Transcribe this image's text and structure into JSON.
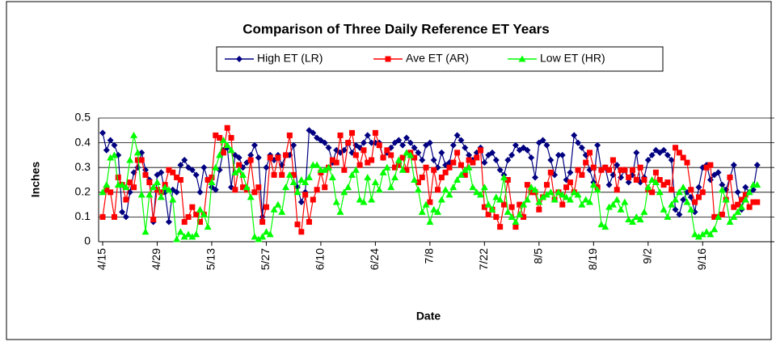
{
  "chart_data": {
    "type": "line",
    "title": "Comparison of Three  Daily Reference ET Years",
    "x_label": "Date",
    "y_label": "Inches",
    "legend": "top",
    "grid": true,
    "ylim": [
      0,
      0.5
    ],
    "yticks": [
      0,
      0.1,
      0.2,
      0.3,
      0.4,
      0.5
    ],
    "categories": [
      "4/15",
      null,
      null,
      null,
      null,
      null,
      null,
      null,
      null,
      null,
      null,
      null,
      null,
      null,
      "4/29",
      null,
      null,
      null,
      null,
      null,
      null,
      null,
      null,
      null,
      null,
      null,
      null,
      null,
      "5/13",
      null,
      null,
      null,
      null,
      null,
      null,
      null,
      null,
      null,
      null,
      null,
      null,
      null,
      "5/27",
      null,
      null,
      null,
      null,
      null,
      null,
      null,
      null,
      null,
      null,
      null,
      null,
      null,
      "6/10",
      null,
      null,
      null,
      null,
      null,
      null,
      null,
      null,
      null,
      null,
      null,
      null,
      null,
      "6/24",
      null,
      null,
      null,
      null,
      null,
      null,
      null,
      null,
      null,
      null,
      null,
      null,
      null,
      "7/8",
      null,
      null,
      null,
      null,
      null,
      null,
      null,
      null,
      null,
      null,
      null,
      null,
      null,
      "7/22",
      null,
      null,
      null,
      null,
      null,
      null,
      null,
      null,
      null,
      null,
      null,
      null,
      null,
      "8/5",
      null,
      null,
      null,
      null,
      null,
      null,
      null,
      null,
      null,
      null,
      null,
      null,
      null,
      "8/19",
      null,
      null,
      null,
      null,
      null,
      null,
      null,
      null,
      null,
      null,
      null,
      null,
      null,
      "9/2",
      null,
      null,
      null,
      null,
      null,
      null,
      null,
      null,
      null,
      null,
      null,
      null,
      null,
      "9/16",
      null,
      null,
      null,
      null,
      null,
      null,
      null,
      null,
      null,
      null,
      null,
      null,
      null,
      null
    ],
    "series": [
      {
        "name": "High ET (LR)",
        "color": "#000080",
        "marker": "diamond",
        "values": [
          0.44,
          0.37,
          0.41,
          0.39,
          0.35,
          0.12,
          0.1,
          0.2,
          0.28,
          0.3,
          0.36,
          0.29,
          0.25,
          0.08,
          0.27,
          0.28,
          0.2,
          0.08,
          0.21,
          0.2,
          0.31,
          0.33,
          0.3,
          0.29,
          0.27,
          0.2,
          0.3,
          0.25,
          0.22,
          0.21,
          0.29,
          0.37,
          0.38,
          0.22,
          0.35,
          0.34,
          0.3,
          0.32,
          0.35,
          0.39,
          0.34,
          0.1,
          0.3,
          0.35,
          0.33,
          0.35,
          0.31,
          0.35,
          0.35,
          0.39,
          0.22,
          0.16,
          0.2,
          0.45,
          0.44,
          0.42,
          0.41,
          0.4,
          0.38,
          0.32,
          0.37,
          0.36,
          0.37,
          0.4,
          0.36,
          0.39,
          0.38,
          0.4,
          0.43,
          0.4,
          0.4,
          0.4,
          0.34,
          0.36,
          0.38,
          0.4,
          0.41,
          0.39,
          0.42,
          0.4,
          0.38,
          0.36,
          0.33,
          0.39,
          0.4,
          0.33,
          0.3,
          0.36,
          0.31,
          0.32,
          0.39,
          0.43,
          0.41,
          0.38,
          0.35,
          0.33,
          0.36,
          0.38,
          0.32,
          0.35,
          0.36,
          0.33,
          0.29,
          0.27,
          0.33,
          0.35,
          0.39,
          0.37,
          0.38,
          0.37,
          0.34,
          0.26,
          0.4,
          0.41,
          0.39,
          0.33,
          0.27,
          0.35,
          0.35,
          0.25,
          0.28,
          0.43,
          0.4,
          0.38,
          0.35,
          0.29,
          0.24,
          0.39,
          0.29,
          0.3,
          0.23,
          0.27,
          0.31,
          0.26,
          0.29,
          0.24,
          0.27,
          0.36,
          0.24,
          0.26,
          0.33,
          0.35,
          0.37,
          0.36,
          0.37,
          0.35,
          0.33,
          0.13,
          0.11,
          0.17,
          0.2,
          0.18,
          0.12,
          0.22,
          0.3,
          0.31,
          0.25,
          0.27,
          0.28,
          0.23,
          0.21,
          0.26,
          0.31,
          0.2,
          0.13,
          0.22,
          0.2,
          0.21,
          0.31
        ]
      },
      {
        "name": "Ave ET (AR)",
        "color": "#ff0000",
        "marker": "square",
        "values": [
          0.1,
          0.21,
          0.2,
          0.1,
          0.26,
          0.23,
          0.17,
          0.24,
          0.22,
          0.33,
          0.33,
          0.27,
          0.24,
          0.09,
          0.21,
          0.2,
          0.23,
          0.29,
          0.28,
          0.26,
          0.25,
          0.08,
          0.1,
          0.14,
          0.11,
          0.08,
          0.11,
          0.25,
          0.26,
          0.43,
          0.42,
          0.36,
          0.46,
          0.42,
          0.21,
          0.31,
          0.22,
          0.21,
          0.33,
          0.2,
          0.22,
          0.08,
          0.14,
          0.34,
          0.27,
          0.34,
          0.27,
          0.35,
          0.43,
          0.27,
          0.07,
          0.04,
          0.19,
          0.08,
          0.17,
          0.21,
          0.28,
          0.22,
          0.3,
          0.33,
          0.32,
          0.43,
          0.29,
          0.4,
          0.44,
          0.35,
          0.31,
          0.37,
          0.32,
          0.33,
          0.44,
          0.39,
          0.34,
          0.37,
          0.35,
          0.3,
          0.31,
          0.34,
          0.29,
          0.36,
          0.34,
          0.24,
          0.26,
          0.3,
          0.16,
          0.29,
          0.21,
          0.26,
          0.28,
          0.3,
          0.32,
          0.36,
          0.31,
          0.27,
          0.33,
          0.32,
          0.34,
          0.37,
          0.14,
          0.11,
          0.13,
          0.1,
          0.06,
          0.15,
          0.25,
          0.14,
          0.06,
          0.15,
          0.1,
          0.23,
          0.2,
          0.2,
          0.13,
          0.18,
          0.23,
          0.28,
          0.17,
          0.2,
          0.15,
          0.22,
          0.24,
          0.2,
          0.29,
          0.27,
          0.32,
          0.36,
          0.3,
          0.22,
          0.29,
          0.3,
          0.29,
          0.33,
          0.21,
          0.29,
          0.29,
          0.26,
          0.29,
          0.25,
          0.3,
          0.25,
          0.21,
          0.2,
          0.28,
          0.25,
          0.23,
          0.24,
          0.21,
          0.38,
          0.36,
          0.34,
          0.32,
          0.21,
          0.16,
          0.18,
          0.2,
          0.3,
          0.31,
          0.1,
          0.1,
          0.11,
          0.17,
          0.26,
          0.14,
          0.15,
          0.17,
          0.19,
          0.14,
          0.16,
          0.16
        ]
      },
      {
        "name": "Low ET (HR)",
        "color": "#00ff00",
        "marker": "triangle",
        "values": [
          0.2,
          0.23,
          0.34,
          0.35,
          0.23,
          0.23,
          0.22,
          0.33,
          0.43,
          0.36,
          0.19,
          0.04,
          0.19,
          0.22,
          0.24,
          0.18,
          0.22,
          0.21,
          0.17,
          0.01,
          0.04,
          0.02,
          0.03,
          0.02,
          0.03,
          0.13,
          0.11,
          0.06,
          0.24,
          0.3,
          0.35,
          0.41,
          0.39,
          0.37,
          0.28,
          0.29,
          0.27,
          0.22,
          0.18,
          0.02,
          0.01,
          0.02,
          0.04,
          0.03,
          0.13,
          0.15,
          0.12,
          0.22,
          0.27,
          0.24,
          0.2,
          0.25,
          0.24,
          0.26,
          0.31,
          0.31,
          0.29,
          0.29,
          0.3,
          0.26,
          0.16,
          0.12,
          0.2,
          0.22,
          0.27,
          0.29,
          0.17,
          0.16,
          0.26,
          0.17,
          0.24,
          0.21,
          0.28,
          0.3,
          0.22,
          0.26,
          0.33,
          0.29,
          0.36,
          0.35,
          0.25,
          0.21,
          0.12,
          0.15,
          0.08,
          0.13,
          0.12,
          0.17,
          0.21,
          0.19,
          0.22,
          0.25,
          0.27,
          0.29,
          0.3,
          0.22,
          0.2,
          0.19,
          0.22,
          0.15,
          0.13,
          0.18,
          0.17,
          0.26,
          0.12,
          0.1,
          0.08,
          0.11,
          0.15,
          0.17,
          0.22,
          0.21,
          0.16,
          0.18,
          0.19,
          0.2,
          0.17,
          0.2,
          0.19,
          0.18,
          0.17,
          0.2,
          0.19,
          0.15,
          0.17,
          0.16,
          0.23,
          0.21,
          0.07,
          0.06,
          0.14,
          0.15,
          0.17,
          0.13,
          0.16,
          0.09,
          0.08,
          0.1,
          0.09,
          0.12,
          0.22,
          0.25,
          0.24,
          0.2,
          0.13,
          0.1,
          0.15,
          0.17,
          0.2,
          0.22,
          0.16,
          0.13,
          0.03,
          0.02,
          0.03,
          0.04,
          0.03,
          0.05,
          0.1,
          0.21,
          0.17,
          0.08,
          0.1,
          0.12,
          0.14,
          0.17,
          0.2,
          0.23,
          0.23
        ]
      }
    ]
  }
}
